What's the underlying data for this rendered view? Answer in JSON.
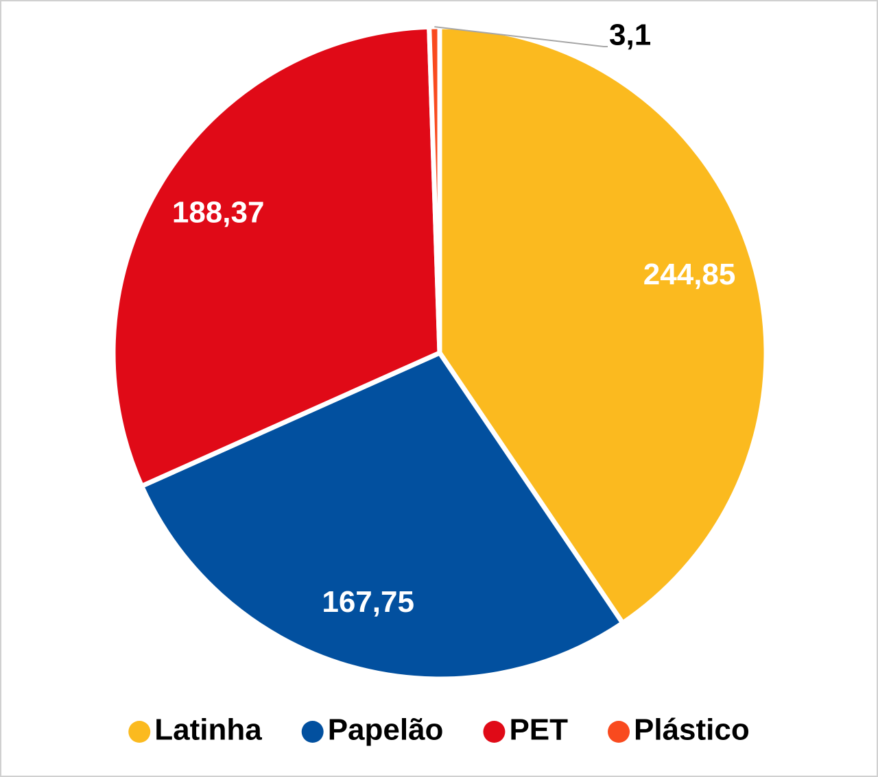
{
  "chart_data": {
    "type": "pie",
    "categories": [
      "Latinha",
      "Papelão",
      "PET",
      "Plástico"
    ],
    "values": [
      244.85,
      167.75,
      188.37,
      3.1
    ],
    "value_labels": [
      "244,85",
      "167,75",
      "188,37",
      "3,1"
    ],
    "colors": [
      "#fbba1f",
      "#02509f",
      "#e00a17",
      "#f94a1e"
    ],
    "legend": "bottom"
  }
}
